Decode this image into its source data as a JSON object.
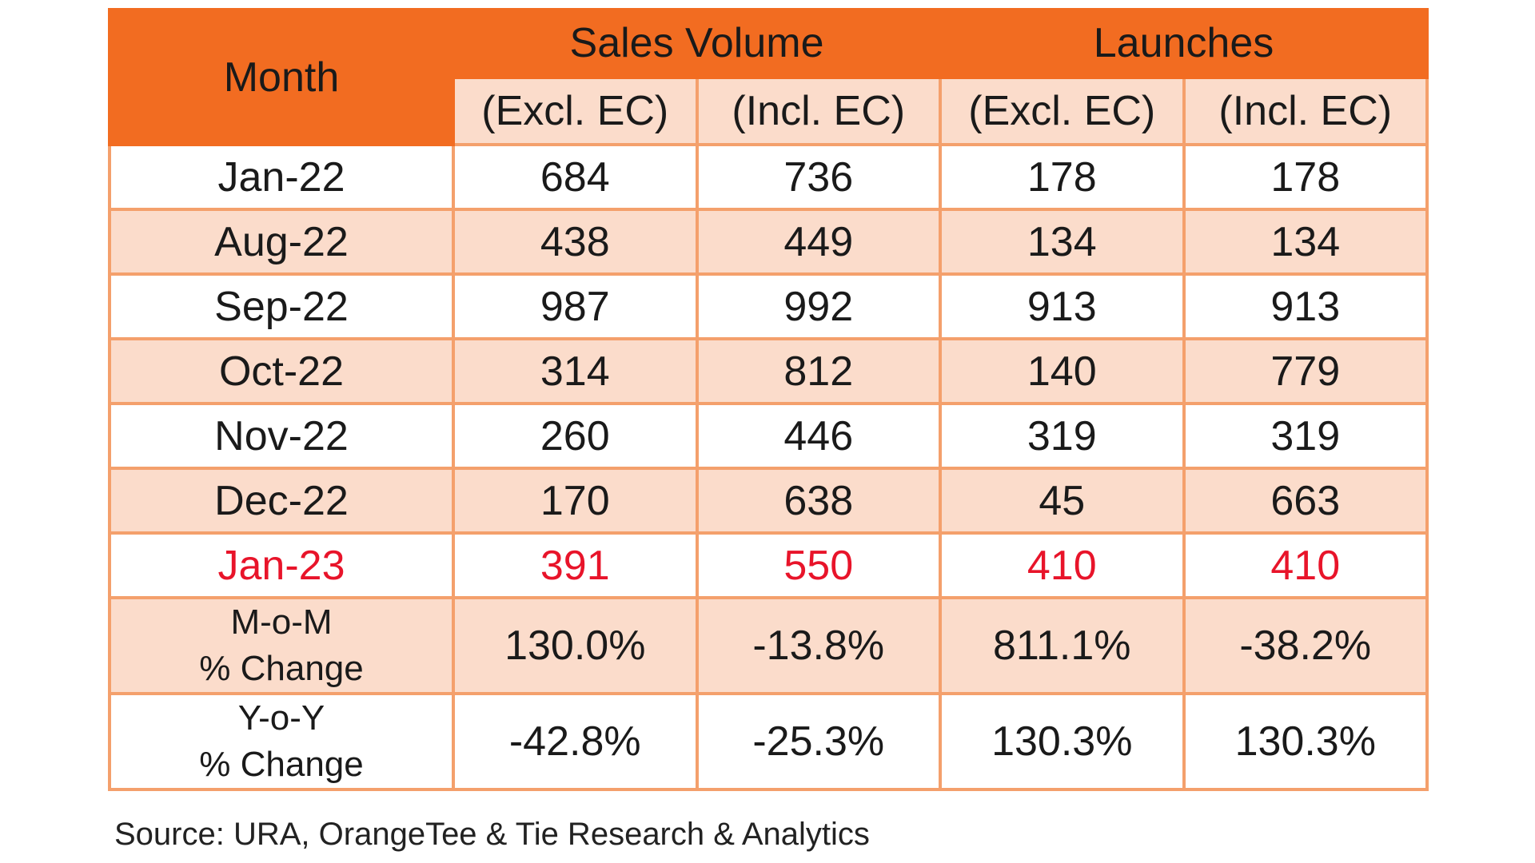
{
  "chart_data": {
    "type": "table",
    "header": {
      "month": "Month",
      "groups": [
        "Sales Volume",
        "Launches"
      ],
      "subcolumns": [
        "(Excl. EC)",
        "(Incl. EC)",
        "(Excl. EC)",
        "(Incl. EC)"
      ]
    },
    "rows": [
      {
        "month": "Jan-22",
        "values": [
          "684",
          "736",
          "178",
          "178"
        ],
        "style": "white"
      },
      {
        "month": "Aug-22",
        "values": [
          "438",
          "449",
          "134",
          "134"
        ],
        "style": "peach"
      },
      {
        "month": "Sep-22",
        "values": [
          "987",
          "992",
          "913",
          "913"
        ],
        "style": "white"
      },
      {
        "month": "Oct-22",
        "values": [
          "314",
          "812",
          "140",
          "779"
        ],
        "style": "peach"
      },
      {
        "month": "Nov-22",
        "values": [
          "260",
          "446",
          "319",
          "319"
        ],
        "style": "white"
      },
      {
        "month": "Dec-22",
        "values": [
          "170",
          "638",
          "45",
          "663"
        ],
        "style": "peach"
      },
      {
        "month": "Jan-23",
        "values": [
          "391",
          "550",
          "410",
          "410"
        ],
        "style": "white",
        "highlight": true
      }
    ],
    "change_rows": [
      {
        "label_lines": [
          "M-o-M",
          "% Change"
        ],
        "values": [
          "130.0%",
          "-13.8%",
          "811.1%",
          "-38.2%"
        ],
        "style": "peach"
      },
      {
        "label_lines": [
          "Y-o-Y",
          "% Change"
        ],
        "values": [
          "-42.8%",
          "-25.3%",
          "130.3%",
          "130.3%"
        ],
        "style": "white"
      }
    ],
    "colors": {
      "header": "#f26c21",
      "peach_row": "#fbdccb",
      "border": "#f4a06c",
      "highlight_text": "#e8142a"
    }
  },
  "source": "Source: URA, OrangeTee & Tie Research & Analytics"
}
